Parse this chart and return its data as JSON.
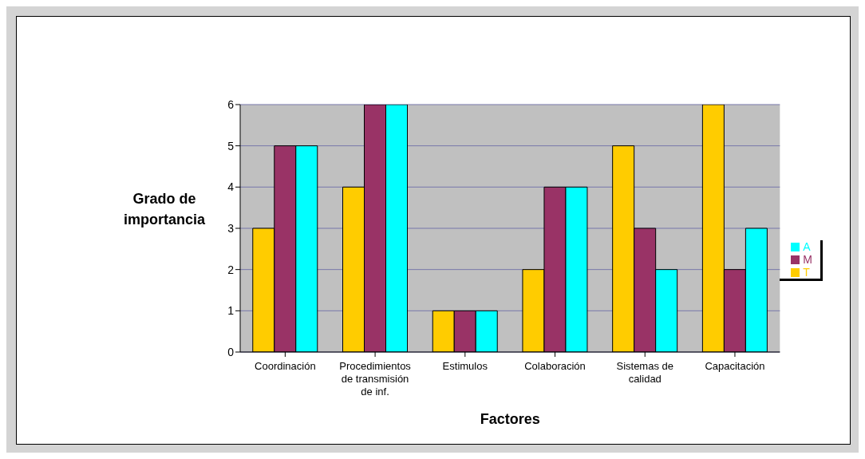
{
  "chart_data": {
    "type": "bar",
    "xlabel": "Factores",
    "ylabel": "Grado de importancia",
    "categories": [
      "Coordinación",
      "Procedimientos de transmisión de inf.",
      "Estimulos",
      "Colaboración",
      "Sistemas de calidad",
      "Capacitación"
    ],
    "series": [
      {
        "name": "T",
        "color": "#ffcc00",
        "values": [
          3,
          4,
          1,
          2,
          5,
          6
        ]
      },
      {
        "name": "M",
        "color": "#993366",
        "values": [
          5,
          6,
          1,
          4,
          3,
          2
        ]
      },
      {
        "name": "A",
        "color": "#00ffff",
        "values": [
          5,
          6,
          1,
          4,
          2,
          3
        ]
      }
    ],
    "ylim": [
      0,
      6
    ],
    "yticks": [
      0,
      1,
      2,
      3,
      4,
      5,
      6
    ],
    "grid": "y",
    "legend": "right"
  }
}
